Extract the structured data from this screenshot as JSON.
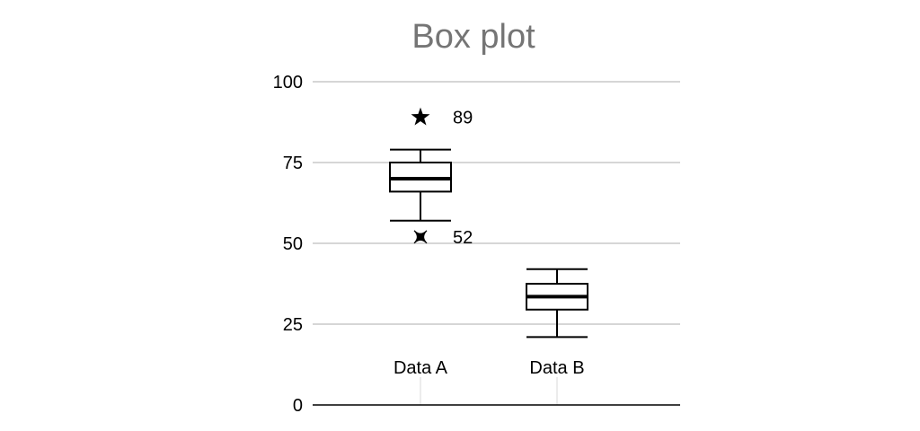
{
  "chart_data": {
    "type": "box",
    "title": "Box plot",
    "xlabel": "",
    "ylabel": "",
    "ylim": [
      0,
      100
    ],
    "yticks": [
      0,
      25,
      50,
      75,
      100
    ],
    "grid": true,
    "categories": [
      "Data A",
      "Data B"
    ],
    "boxes": [
      {
        "name": "Data A",
        "min": 57,
        "q1": 66,
        "median": 70,
        "q3": 75,
        "max": 79,
        "outliers": [
          {
            "value": 89,
            "marker": "star",
            "label": "89"
          },
          {
            "value": 52,
            "marker": "cross",
            "label": "52"
          }
        ]
      },
      {
        "name": "Data B",
        "min": 21,
        "q1": 29.5,
        "median": 33.5,
        "q3": 37.5,
        "max": 42,
        "outliers": []
      }
    ],
    "colors": {
      "title": "#757575",
      "grid": "#bdbdbd",
      "axis": "#000000",
      "box_stroke": "#000000",
      "text": "#000000",
      "category_grid": "#e0e0e0"
    }
  }
}
